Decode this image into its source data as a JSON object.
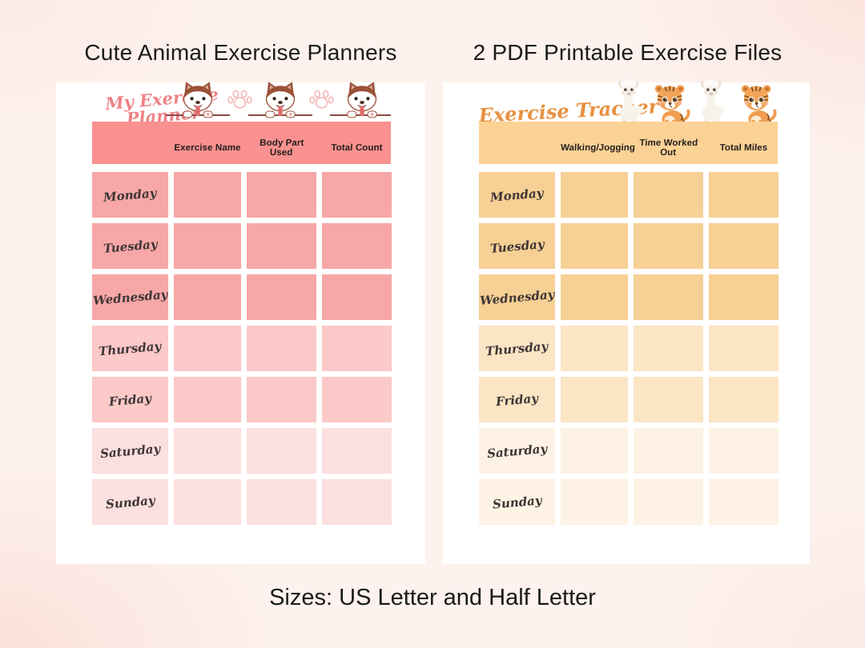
{
  "page": {
    "heading_left": "Cute Animal Exercise Planners",
    "heading_right": "2 PDF Printable Exercise Files",
    "footer": "Sizes: US Letter and Half Letter"
  },
  "planners": [
    {
      "title": "My Exercise Planner",
      "title_lines": [
        "My Exercise",
        "Planner"
      ],
      "columns": [
        "Exercise Name",
        "Body Part Used",
        "Total Count"
      ],
      "days": [
        "Monday",
        "Tuesday",
        "Wednesday",
        "Thursday",
        "Friday",
        "Saturday",
        "Sunday"
      ],
      "icons": [
        "husky-dog-icon",
        "paw-print-icon"
      ],
      "colors": {
        "title": "#ee8287",
        "band": "#f8918f",
        "rows": [
          "#f7a7a7",
          "#f7a7a7",
          "#f7a7a7",
          "#fbc9c8",
          "#fbc9c8",
          "#fcdfdf",
          "#fcdfdf"
        ]
      }
    },
    {
      "title": "Exercise Tracker",
      "title_lines": [
        "Exercise Tracker"
      ],
      "columns": [
        "Walking/Jogging",
        "Time Worked Out",
        "Total Miles"
      ],
      "days": [
        "Monday",
        "Tuesday",
        "Wednesday",
        "Thursday",
        "Friday",
        "Saturday",
        "Sunday"
      ],
      "icons": [
        "llama-icon",
        "tiger-cub-icon"
      ],
      "colors": {
        "title": "#e8913f",
        "band": "#fbd295",
        "rows": [
          "#f6d094",
          "#f6d094",
          "#f6d094",
          "#fbe5c4",
          "#fbe5c4",
          "#fdf2e3",
          "#fdf2e3"
        ]
      }
    }
  ]
}
